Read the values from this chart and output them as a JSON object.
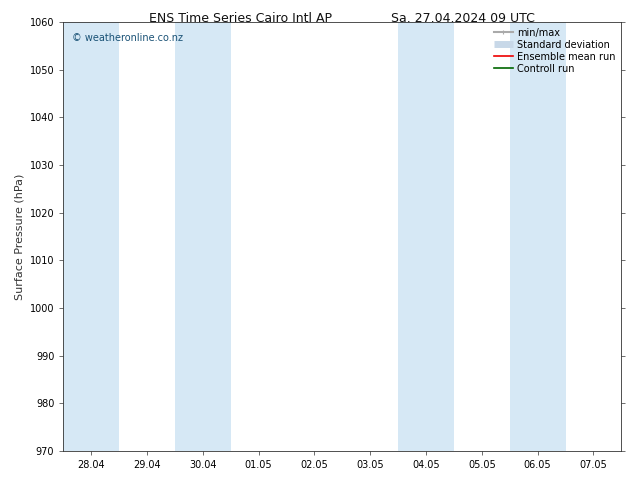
{
  "title_left": "ENS Time Series Cairo Intl AP",
  "title_right": "Sa. 27.04.2024 09 UTC",
  "ylabel": "Surface Pressure (hPa)",
  "ylim": [
    970,
    1060
  ],
  "yticks": [
    970,
    980,
    990,
    1000,
    1010,
    1020,
    1030,
    1040,
    1050,
    1060
  ],
  "xtick_labels": [
    "28.04",
    "29.04",
    "30.04",
    "01.05",
    "02.05",
    "03.05",
    "04.05",
    "05.05",
    "06.05",
    "07.05"
  ],
  "xtick_positions": [
    0,
    1,
    2,
    3,
    4,
    5,
    6,
    7,
    8,
    9
  ],
  "xlim": [
    -0.5,
    9.5
  ],
  "shaded_bands": [
    {
      "x_start": -0.5,
      "x_end": 0.5
    },
    {
      "x_start": 1.5,
      "x_end": 2.5
    },
    {
      "x_start": 5.5,
      "x_end": 6.5
    },
    {
      "x_start": 7.5,
      "x_end": 8.5
    }
  ],
  "shaded_color": "#d6e8f5",
  "watermark": "© weatheronline.co.nz",
  "watermark_color": "#1a5276",
  "background_color": "#ffffff",
  "legend_entries": [
    {
      "label": "min/max",
      "color": "#aaaaaa",
      "lw": 1.5
    },
    {
      "label": "Standard deviation",
      "color": "#c8d8e8",
      "lw": 5
    },
    {
      "label": "Ensemble mean run",
      "color": "#ee0000",
      "lw": 1.2
    },
    {
      "label": "Controll run",
      "color": "#006600",
      "lw": 1.2
    }
  ],
  "title_fontsize": 9,
  "axis_label_fontsize": 8,
  "tick_fontsize": 7,
  "legend_fontsize": 7,
  "watermark_fontsize": 7
}
